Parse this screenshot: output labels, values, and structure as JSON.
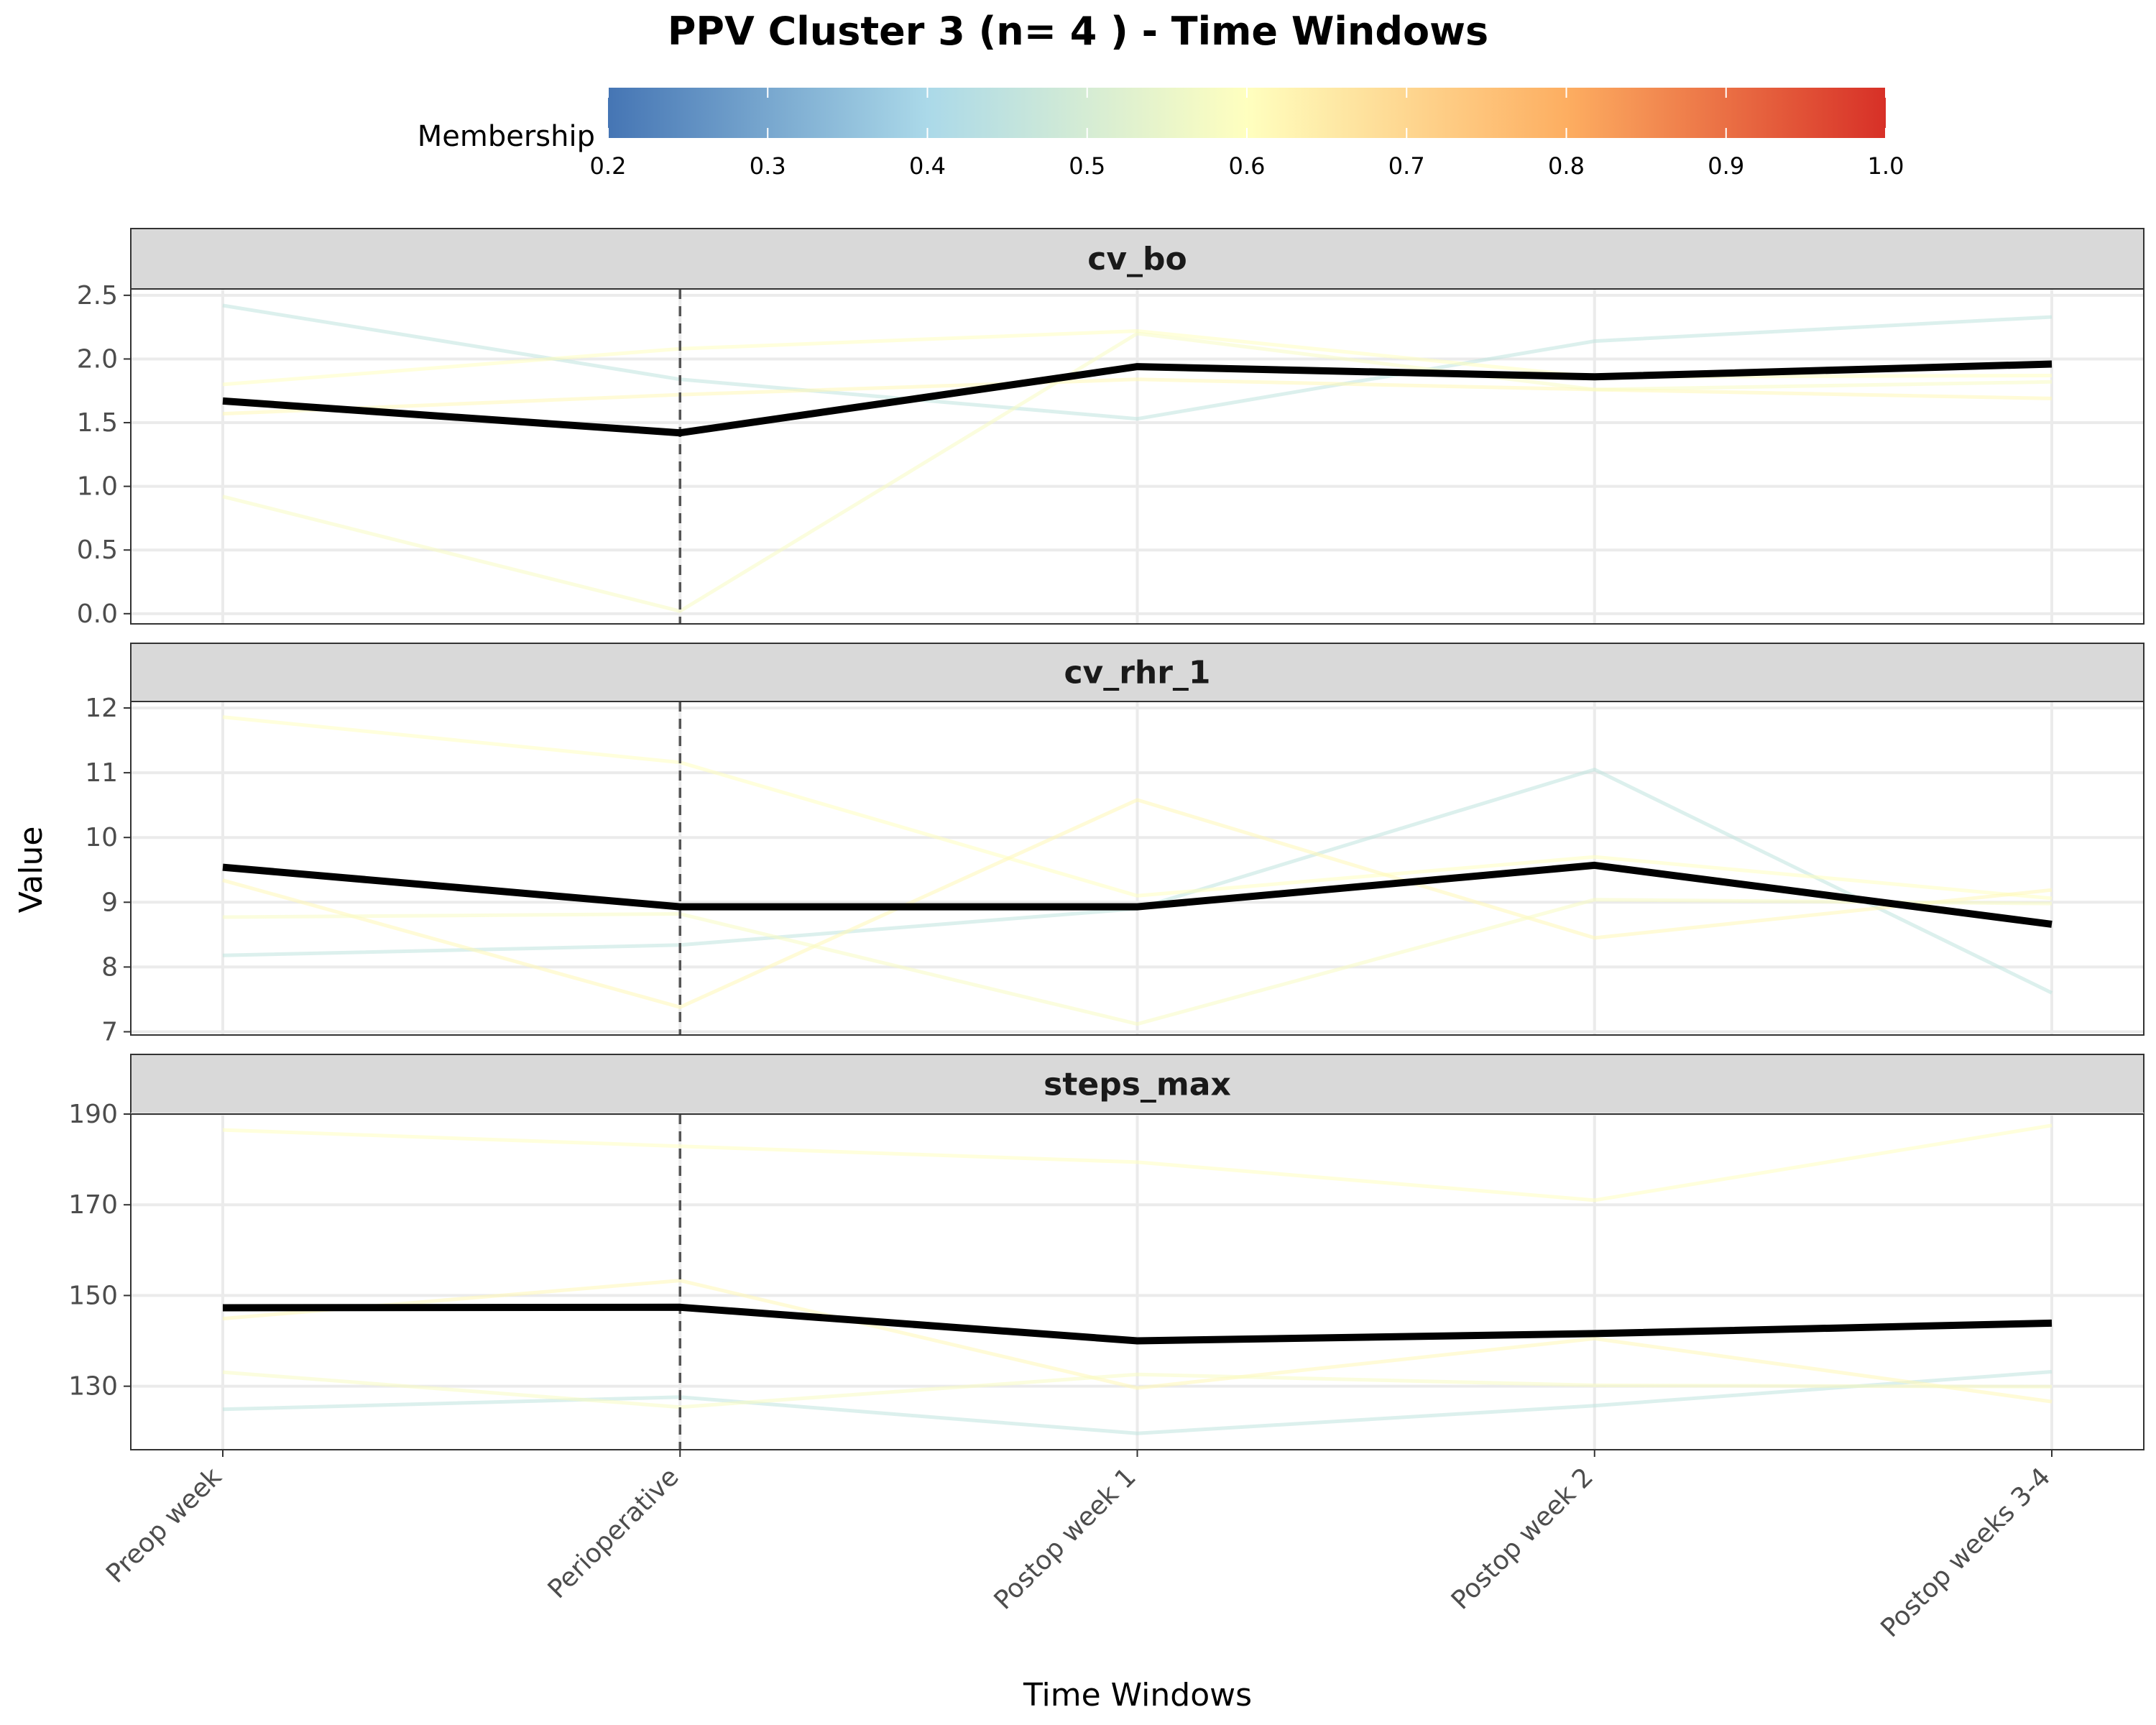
{
  "chart_data": {
    "type": "line",
    "title": "PPV Cluster 3 (n= 4 ) - Time Windows",
    "xlabel": "Time Windows",
    "ylabel": "Value",
    "categories": [
      "Preop week",
      "Perioperative",
      "Postop week 1",
      "Postop week 2",
      "Postop weeks 3-4"
    ],
    "reference_line_category": "Perioperative",
    "legend": {
      "title": "Membership",
      "type": "colorbar",
      "placement": "top",
      "range": [
        0.2,
        1.0
      ],
      "ticks": [
        "0.2",
        "0.3",
        "0.4",
        "0.5",
        "0.6",
        "0.7",
        "0.8",
        "0.9",
        "1.0"
      ],
      "colors": [
        "#4575b4",
        "#abd9e9",
        "#ffffbf",
        "#fdae61",
        "#d73027"
      ]
    },
    "grid": true,
    "mean_line_color": "#000000",
    "panels": [
      {
        "name": "cv_bo",
        "ylim": [
          -0.08,
          2.55
        ],
        "yticks": [
          0.0,
          0.5,
          1.0,
          1.5,
          2.0,
          2.5
        ],
        "ytick_labels": [
          "0.0",
          "0.5",
          "1.0",
          "1.5",
          "2.0",
          "2.5"
        ],
        "mean": [
          1.67,
          1.42,
          1.94,
          1.86,
          1.96
        ],
        "series": [
          {
            "membership": 0.45,
            "values": [
              2.42,
              1.84,
              1.53,
              2.14,
              2.33
            ]
          },
          {
            "membership": 0.6,
            "values": [
              1.8,
              2.08,
              2.22,
              1.86,
              1.87
            ]
          },
          {
            "membership": 0.62,
            "values": [
              1.57,
              1.72,
              1.84,
              1.76,
              1.69
            ]
          },
          {
            "membership": 0.58,
            "values": [
              0.92,
              0.02,
              2.2,
              1.76,
              1.82
            ]
          }
        ]
      },
      {
        "name": "cv_rhr_1",
        "ylim": [
          6.95,
          12.1
        ],
        "yticks": [
          7,
          8,
          9,
          10,
          11,
          12
        ],
        "ytick_labels": [
          "7",
          "8",
          "9",
          "10",
          "11",
          "12"
        ],
        "mean": [
          9.54,
          8.93,
          8.93,
          9.57,
          8.66
        ],
        "series": [
          {
            "membership": 0.45,
            "values": [
              8.18,
              8.34,
              8.9,
              11.05,
              7.6
            ]
          },
          {
            "membership": 0.6,
            "values": [
              11.86,
              11.16,
              9.1,
              9.7,
              9.06
            ]
          },
          {
            "membership": 0.62,
            "values": [
              9.34,
              7.38,
              10.58,
              8.45,
              9.19
            ]
          },
          {
            "membership": 0.58,
            "values": [
              8.77,
              8.82,
              7.12,
              9.04,
              8.98
            ]
          }
        ]
      },
      {
        "name": "steps_max",
        "ylim": [
          116,
          190
        ],
        "yticks": [
          130,
          150,
          170,
          190
        ],
        "ytick_labels": [
          "130",
          "150",
          "170",
          "190"
        ],
        "mean": [
          147.3,
          147.4,
          140.0,
          141.6,
          143.9
        ],
        "series": [
          {
            "membership": 0.45,
            "values": [
              124.9,
              127.6,
              119.6,
              125.7,
              133.2
            ]
          },
          {
            "membership": 0.6,
            "values": [
              186.5,
              182.9,
              179.4,
              171.0,
              187.5
            ]
          },
          {
            "membership": 0.62,
            "values": [
              144.9,
              153.3,
              129.6,
              140.5,
              126.6
            ]
          },
          {
            "membership": 0.58,
            "values": [
              133.1,
              125.4,
              132.6,
              130.2,
              129.9
            ]
          }
        ]
      }
    ]
  }
}
